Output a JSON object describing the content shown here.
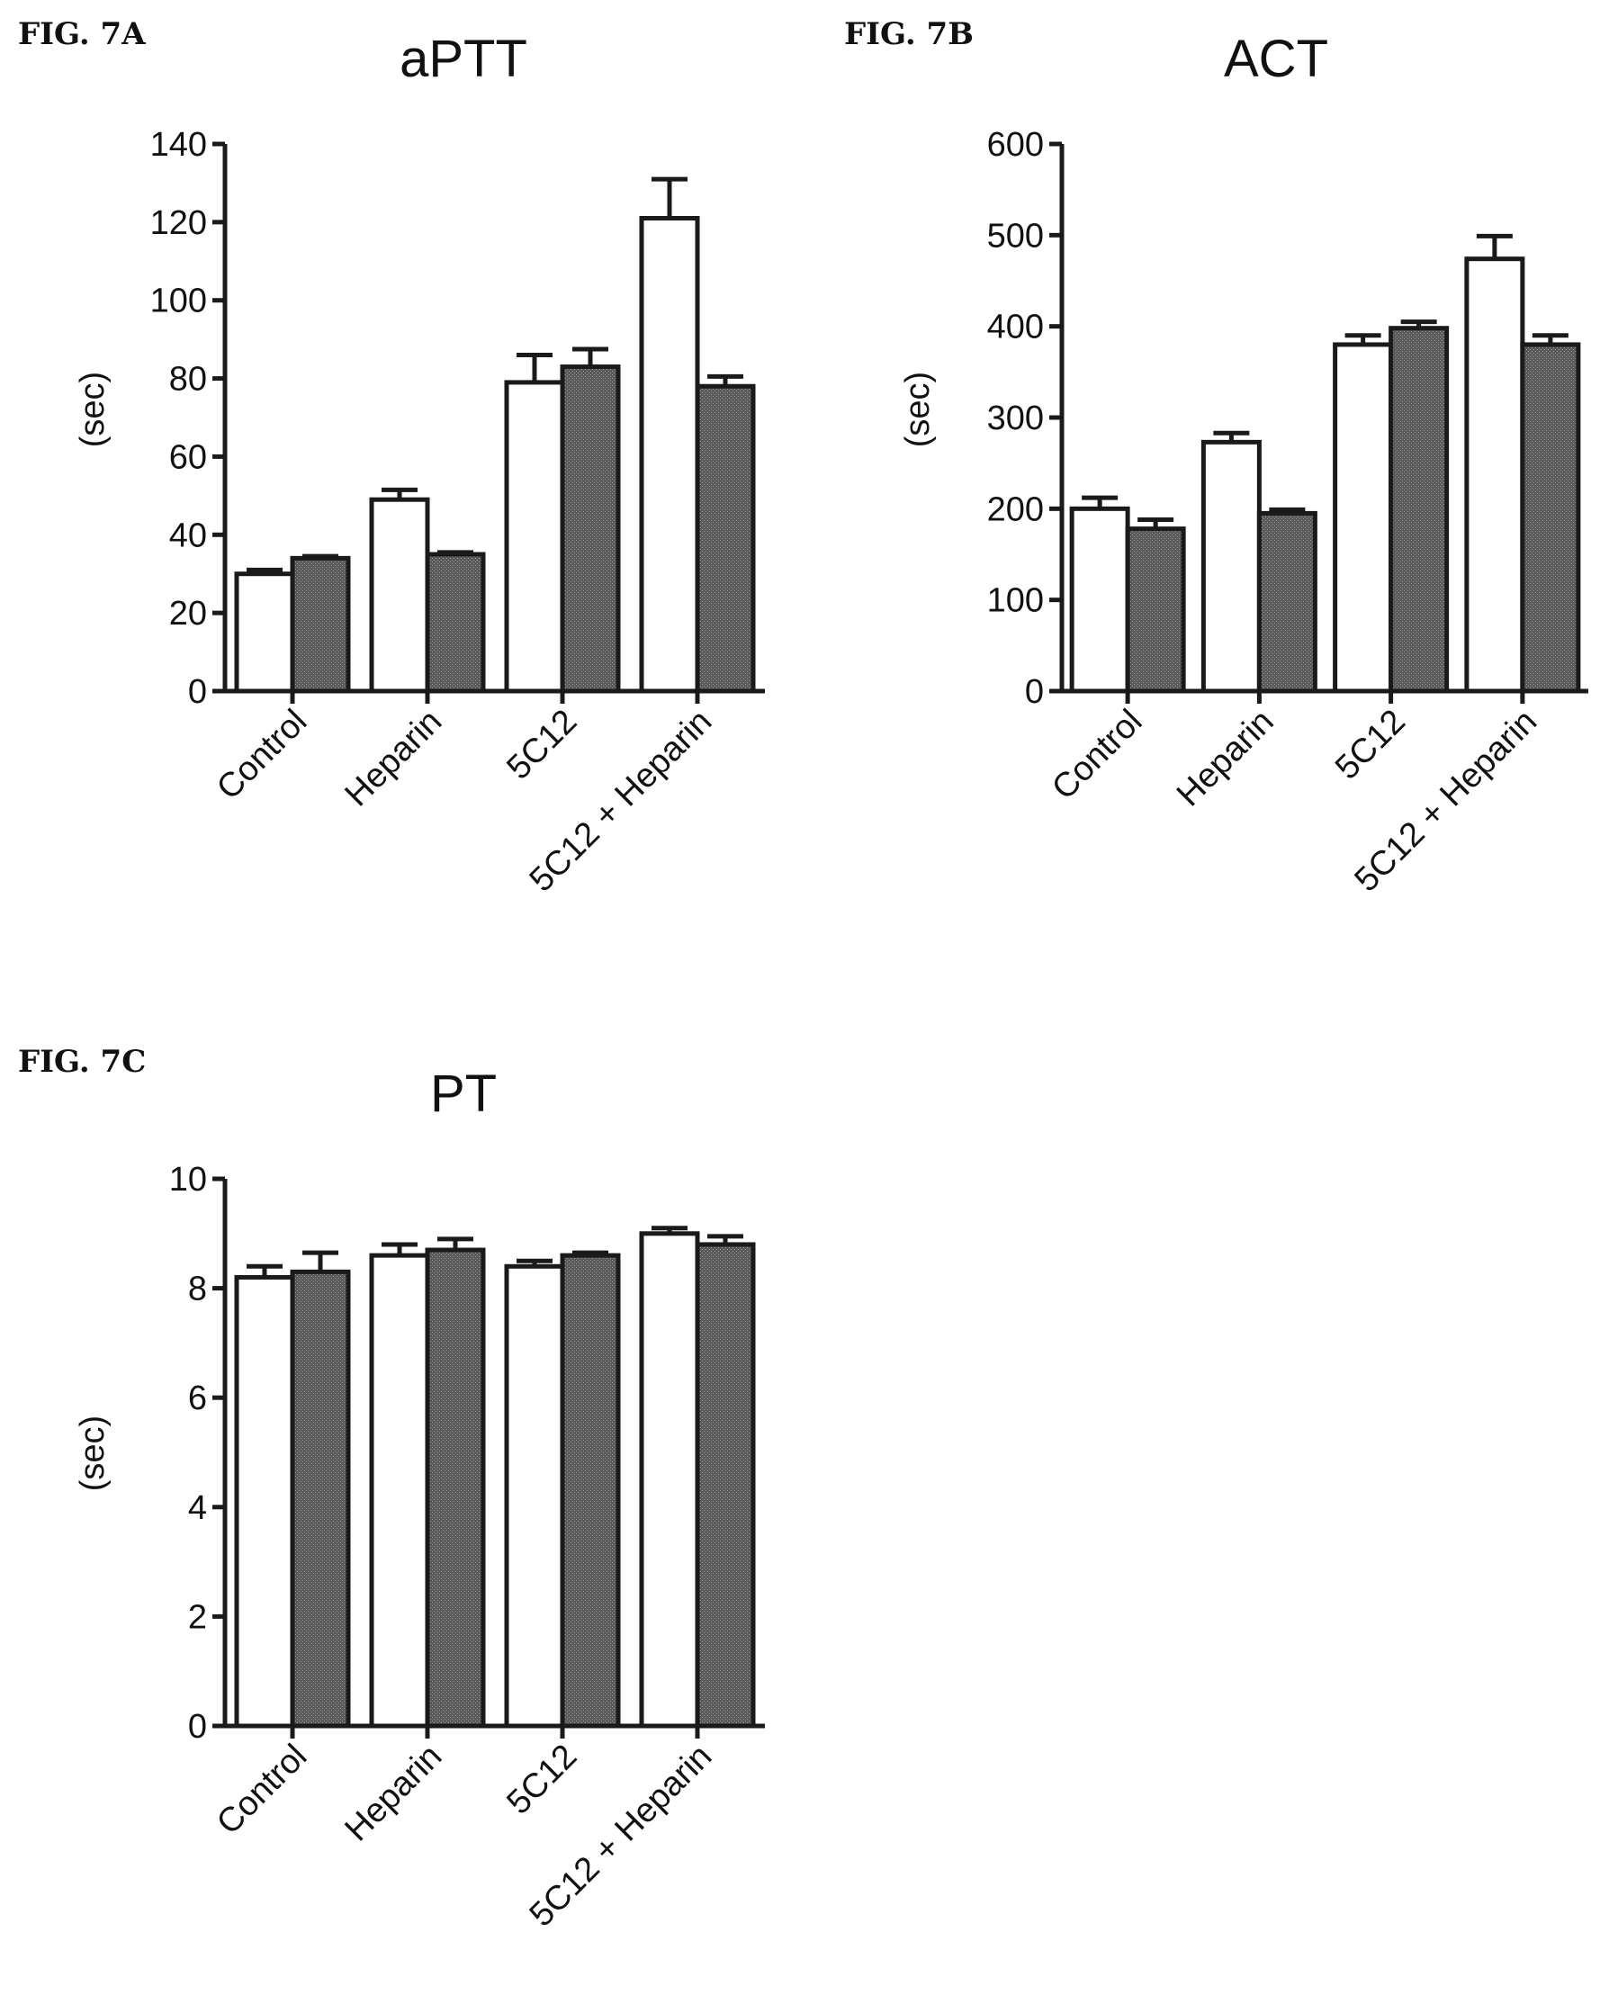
{
  "figures": [
    {
      "label": "FIG. 7A"
    },
    {
      "label": "FIG. 7B"
    },
    {
      "label": "FIG. 7C"
    }
  ],
  "colors": {
    "open_bar": "#ffffff",
    "filled_bar": "#4a4a4a",
    "outline": "#1a1a1a"
  },
  "chart_data": [
    {
      "type": "bar",
      "title": "aPTT",
      "ylabel": "(sec)",
      "xlabel": "",
      "ylim": [
        0,
        140
      ],
      "yticks": [
        0,
        20,
        40,
        60,
        80,
        100,
        120,
        140
      ],
      "categories": [
        "Control",
        "Heparin",
        "5C12",
        "5C12 + Heparin"
      ],
      "series": [
        {
          "values": [
            30,
            49,
            79,
            121
          ],
          "errors": [
            1,
            2.5,
            7,
            10
          ]
        },
        {
          "values": [
            34,
            35,
            83,
            78
          ],
          "errors": [
            0.5,
            0.5,
            4.5,
            2.5
          ]
        }
      ]
    },
    {
      "type": "bar",
      "title": "ACT",
      "ylabel": "(sec)",
      "xlabel": "",
      "ylim": [
        0,
        600
      ],
      "yticks": [
        0,
        100,
        200,
        300,
        400,
        500,
        600
      ],
      "categories": [
        "Control",
        "Heparin",
        "5C12",
        "5C12 + Heparin"
      ],
      "series": [
        {
          "values": [
            200,
            273,
            380,
            474
          ],
          "errors": [
            12,
            10,
            10,
            25
          ]
        },
        {
          "values": [
            178,
            195,
            398,
            380
          ],
          "errors": [
            10,
            4,
            7,
            10
          ]
        }
      ]
    },
    {
      "type": "bar",
      "title": "PT",
      "ylabel": "(sec)",
      "xlabel": "",
      "ylim": [
        0,
        10
      ],
      "yticks": [
        0,
        2,
        4,
        6,
        8,
        10
      ],
      "categories": [
        "Control",
        "Heparin",
        "5C12",
        "5C12 + Heparin"
      ],
      "series": [
        {
          "values": [
            8.2,
            8.6,
            8.4,
            9.0
          ],
          "errors": [
            0.2,
            0.2,
            0.1,
            0.1
          ]
        },
        {
          "values": [
            8.3,
            8.7,
            8.6,
            8.8
          ],
          "errors": [
            0.35,
            0.2,
            0.05,
            0.15
          ]
        }
      ]
    }
  ]
}
